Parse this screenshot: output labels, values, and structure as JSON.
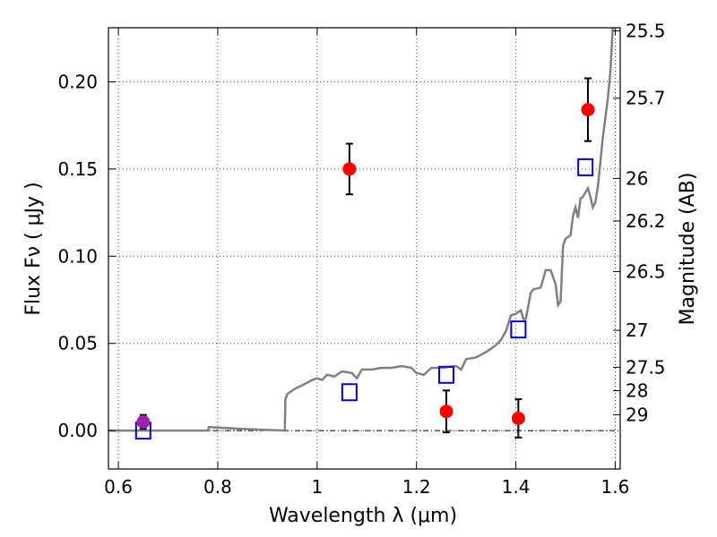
{
  "chart_data": {
    "type": "scatter",
    "xlabel": "Wavelength  λ (μm)",
    "ylabel": "Flux  Fν  ( μJy )",
    "y2label": "Magnitude (AB)",
    "xlim": [
      0.58,
      1.61
    ],
    "ylim": [
      -0.022,
      0.231
    ],
    "grid": true,
    "x_ticks": [
      0.6,
      0.8,
      1.0,
      1.2,
      1.4,
      1.6
    ],
    "x_tick_labels": [
      "0.6",
      "0.8",
      "1",
      "1.2",
      "1.4",
      "1.6"
    ],
    "y_ticks": [
      0.0,
      0.05,
      0.1,
      0.15,
      0.2
    ],
    "y_tick_labels": [
      "0.00",
      "0.05",
      "0.10",
      "0.15",
      "0.20"
    ],
    "mag_ticks": [
      {
        "label": "25.5",
        "flux": 0.2292
      },
      {
        "label": "25.7",
        "flux": 0.1906
      },
      {
        "label": "26",
        "flux": 0.1446
      },
      {
        "label": "26.2",
        "flux": 0.1202
      },
      {
        "label": "26.5",
        "flux": 0.0912
      },
      {
        "label": "27",
        "flux": 0.0575
      },
      {
        "label": "27.5",
        "flux": 0.0363
      },
      {
        "label": "28",
        "flux": 0.0229
      },
      {
        "label": "29",
        "flux": 0.0091
      }
    ],
    "observed": [
      {
        "x": 0.65,
        "y": 0.005,
        "err": 0.004,
        "color": "#a020b0"
      },
      {
        "x": 1.065,
        "y": 0.15,
        "err": 0.0145,
        "color": "#ff0000"
      },
      {
        "x": 1.26,
        "y": 0.011,
        "err": 0.012,
        "color": "#ff0000"
      },
      {
        "x": 1.405,
        "y": 0.007,
        "err": 0.011,
        "color": "#ff0000"
      },
      {
        "x": 1.545,
        "y": 0.184,
        "err": 0.018,
        "color": "#ff0000"
      }
    ],
    "model_points": [
      {
        "x": 0.65,
        "y": 0.0
      },
      {
        "x": 1.065,
        "y": 0.022
      },
      {
        "x": 1.26,
        "y": 0.032
      },
      {
        "x": 1.405,
        "y": 0.058
      },
      {
        "x": 1.54,
        "y": 0.151
      }
    ],
    "model_points_color": "#0000dd",
    "sed_color": "#808080",
    "sed": [
      [
        0.58,
        0.0
      ],
      [
        0.7,
        0.0
      ],
      [
        0.78,
        0.0
      ],
      [
        0.782,
        0.002
      ],
      [
        0.85,
        0.001
      ],
      [
        0.935,
        0.0
      ],
      [
        0.936,
        0.018
      ],
      [
        0.94,
        0.021
      ],
      [
        0.955,
        0.024
      ],
      [
        0.97,
        0.026
      ],
      [
        0.99,
        0.029
      ],
      [
        1.0,
        0.03
      ],
      [
        1.01,
        0.029
      ],
      [
        1.02,
        0.032
      ],
      [
        1.035,
        0.031
      ],
      [
        1.05,
        0.034
      ],
      [
        1.07,
        0.033
      ],
      [
        1.08,
        0.03
      ],
      [
        1.09,
        0.035
      ],
      [
        1.11,
        0.035
      ],
      [
        1.13,
        0.036
      ],
      [
        1.15,
        0.036
      ],
      [
        1.17,
        0.037
      ],
      [
        1.19,
        0.036
      ],
      [
        1.2,
        0.033
      ],
      [
        1.215,
        0.032
      ],
      [
        1.23,
        0.036
      ],
      [
        1.25,
        0.036
      ],
      [
        1.28,
        0.037
      ],
      [
        1.29,
        0.035
      ],
      [
        1.3,
        0.041
      ],
      [
        1.32,
        0.042
      ],
      [
        1.34,
        0.045
      ],
      [
        1.36,
        0.049
      ],
      [
        1.37,
        0.052
      ],
      [
        1.38,
        0.057
      ],
      [
        1.39,
        0.066
      ],
      [
        1.4,
        0.067
      ],
      [
        1.41,
        0.069
      ],
      [
        1.415,
        0.064
      ],
      [
        1.42,
        0.064
      ],
      [
        1.43,
        0.079
      ],
      [
        1.435,
        0.081
      ],
      [
        1.45,
        0.082
      ],
      [
        1.455,
        0.087
      ],
      [
        1.46,
        0.092
      ],
      [
        1.47,
        0.092
      ],
      [
        1.48,
        0.084
      ],
      [
        1.485,
        0.072
      ],
      [
        1.49,
        0.074
      ],
      [
        1.495,
        0.106
      ],
      [
        1.5,
        0.11
      ],
      [
        1.51,
        0.112
      ],
      [
        1.515,
        0.123
      ],
      [
        1.52,
        0.128
      ],
      [
        1.525,
        0.122
      ],
      [
        1.53,
        0.133
      ],
      [
        1.535,
        0.134
      ],
      [
        1.545,
        0.139
      ],
      [
        1.55,
        0.134
      ],
      [
        1.555,
        0.128
      ],
      [
        1.56,
        0.131
      ],
      [
        1.565,
        0.14
      ],
      [
        1.575,
        0.168
      ],
      [
        1.585,
        0.19
      ],
      [
        1.59,
        0.205
      ],
      [
        1.595,
        0.231
      ]
    ]
  }
}
